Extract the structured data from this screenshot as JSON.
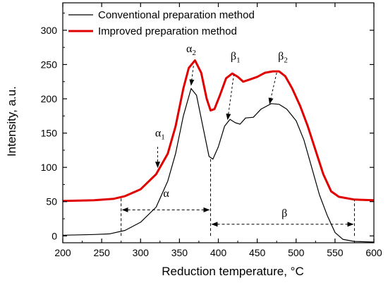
{
  "chart_data": {
    "type": "line",
    "title": "",
    "xlabel": "Reduction temperature, °C",
    "ylabel": "Intensity, a.u.",
    "xlim": [
      200,
      600
    ],
    "ylim": [
      -10,
      340
    ],
    "xticks": [
      200,
      250,
      300,
      350,
      400,
      450,
      500,
      550,
      600
    ],
    "yticks": [
      0,
      50,
      100,
      150,
      200,
      250,
      300
    ],
    "grid": false,
    "legend": "top-left",
    "series": [
      {
        "name": "Conventional preparation method",
        "color": "#000000",
        "points": [
          [
            200,
            1
          ],
          [
            240,
            2
          ],
          [
            260,
            3
          ],
          [
            280,
            8
          ],
          [
            300,
            20
          ],
          [
            320,
            42
          ],
          [
            335,
            80
          ],
          [
            345,
            120
          ],
          [
            355,
            175
          ],
          [
            365,
            215
          ],
          [
            372,
            205
          ],
          [
            380,
            160
          ],
          [
            388,
            116
          ],
          [
            393,
            112
          ],
          [
            400,
            130
          ],
          [
            408,
            160
          ],
          [
            415,
            170
          ],
          [
            422,
            165
          ],
          [
            428,
            163
          ],
          [
            435,
            172
          ],
          [
            445,
            173
          ],
          [
            455,
            185
          ],
          [
            468,
            193
          ],
          [
            478,
            192
          ],
          [
            488,
            185
          ],
          [
            500,
            168
          ],
          [
            510,
            140
          ],
          [
            520,
            100
          ],
          [
            530,
            60
          ],
          [
            540,
            30
          ],
          [
            550,
            5
          ],
          [
            560,
            -5
          ],
          [
            575,
            -8
          ],
          [
            600,
            -9
          ]
        ]
      },
      {
        "name": "Improved preparation method",
        "color": "#e00000",
        "points": [
          [
            200,
            51
          ],
          [
            240,
            52
          ],
          [
            265,
            54
          ],
          [
            280,
            58
          ],
          [
            300,
            68
          ],
          [
            320,
            90
          ],
          [
            335,
            120
          ],
          [
            345,
            160
          ],
          [
            355,
            215
          ],
          [
            362,
            245
          ],
          [
            370,
            256
          ],
          [
            378,
            238
          ],
          [
            385,
            200
          ],
          [
            390,
            183
          ],
          [
            395,
            185
          ],
          [
            402,
            205
          ],
          [
            410,
            230
          ],
          [
            418,
            237
          ],
          [
            425,
            232
          ],
          [
            432,
            225
          ],
          [
            440,
            228
          ],
          [
            450,
            232
          ],
          [
            460,
            238
          ],
          [
            470,
            240
          ],
          [
            478,
            240
          ],
          [
            486,
            233
          ],
          [
            495,
            215
          ],
          [
            505,
            190
          ],
          [
            515,
            160
          ],
          [
            525,
            125
          ],
          [
            535,
            90
          ],
          [
            545,
            65
          ],
          [
            555,
            57
          ],
          [
            575,
            53
          ],
          [
            600,
            52
          ]
        ]
      }
    ],
    "annotations": [
      {
        "label": "α",
        "sub": "1",
        "x": 325,
        "y": 145
      },
      {
        "label": "α",
        "sub": "2",
        "x": 365,
        "y": 268
      },
      {
        "label": "β",
        "sub": "1",
        "x": 422,
        "y": 257
      },
      {
        "label": "β",
        "sub": "2",
        "x": 483,
        "y": 257
      },
      {
        "label": "α",
        "sub": "",
        "x": 333,
        "y": 57
      },
      {
        "label": "β",
        "sub": "",
        "x": 485,
        "y": 28
      }
    ],
    "arrows": [
      {
        "from": [
          322,
          130
        ],
        "to": [
          322,
          100
        ],
        "style": "dashed"
      },
      {
        "from": [
          368,
          248
        ],
        "to": [
          365,
          220
        ],
        "style": "dashed"
      },
      {
        "from": [
          420,
          236
        ],
        "to": [
          412,
          170
        ],
        "style": "dashed"
      },
      {
        "from": [
          475,
          238
        ],
        "to": [
          466,
          193
        ],
        "style": "dashed"
      }
    ],
    "ranges": [
      {
        "label": "α",
        "x1": 275,
        "x2": 390,
        "y": 38
      },
      {
        "label": "β",
        "x1": 390,
        "x2": 575,
        "y": 17
      }
    ],
    "vlines": [
      {
        "x": 275,
        "y1": 0,
        "y2": 55
      },
      {
        "x": 390,
        "y1": 0,
        "y2": 112
      },
      {
        "x": 575,
        "y1": 0,
        "y2": 52
      }
    ]
  }
}
